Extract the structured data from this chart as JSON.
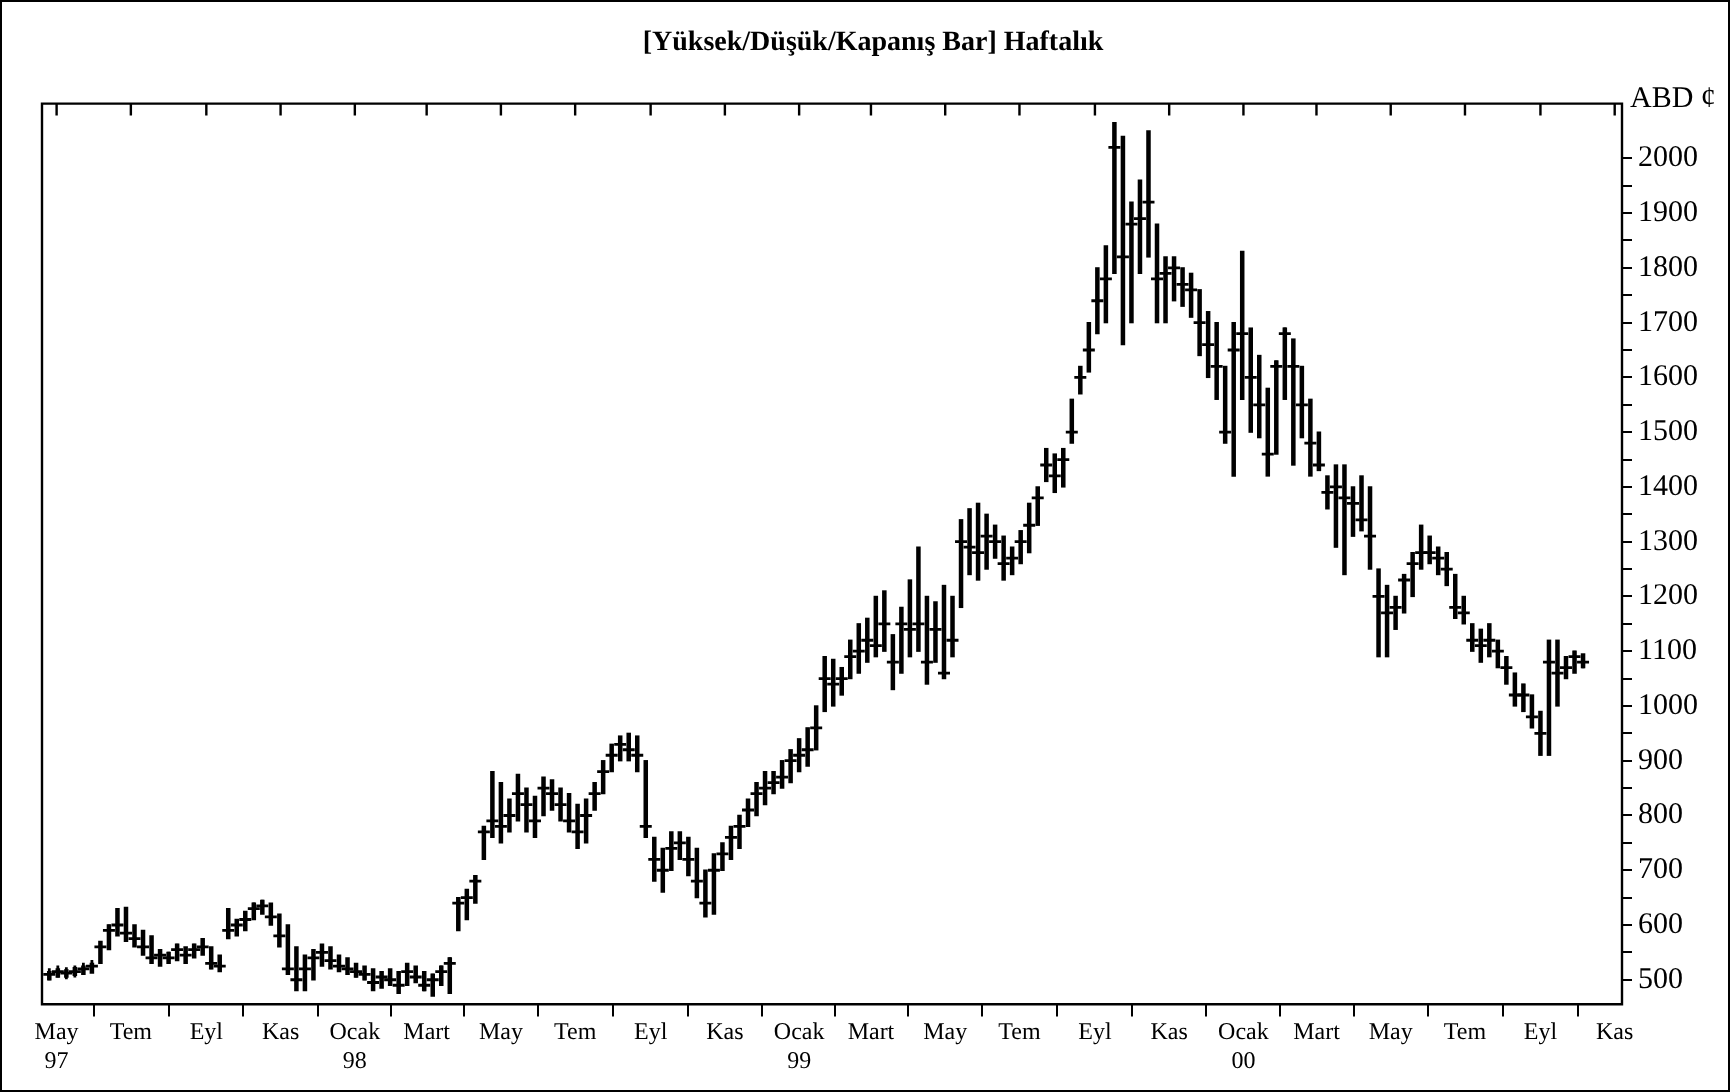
{
  "chart_data": {
    "type": "bar",
    "title": "[Yüksek/Düşük/Kapanış Bar] Haftalık",
    "ylabel": "ABD ¢",
    "x": [
      "1997-04-25",
      "1997-05-02",
      "1997-05-09",
      "1997-05-16",
      "1997-05-23",
      "1997-05-30",
      "1997-06-06",
      "1997-06-13",
      "1997-06-20",
      "1997-06-27",
      "1997-07-04",
      "1997-07-11",
      "1997-07-18",
      "1997-07-25",
      "1997-08-01",
      "1997-08-08",
      "1997-08-15",
      "1997-08-22",
      "1997-08-29",
      "1997-09-05",
      "1997-09-12",
      "1997-09-19",
      "1997-09-26",
      "1997-10-03",
      "1997-10-10",
      "1997-10-17",
      "1997-10-24",
      "1997-10-31",
      "1997-11-07",
      "1997-11-14",
      "1997-11-21",
      "1997-11-28",
      "1997-12-05",
      "1997-12-12",
      "1997-12-19",
      "1997-12-26",
      "1998-01-02",
      "1998-01-09",
      "1998-01-16",
      "1998-01-23",
      "1998-01-30",
      "1998-02-06",
      "1998-02-13",
      "1998-02-20",
      "1998-02-27",
      "1998-03-06",
      "1998-03-13",
      "1998-03-20",
      "1998-03-27",
      "1998-04-03",
      "1998-04-10",
      "1998-04-17",
      "1998-04-24",
      "1998-05-01",
      "1998-05-08",
      "1998-05-15",
      "1998-05-22",
      "1998-05-29",
      "1998-06-05",
      "1998-06-12",
      "1998-06-19",
      "1998-06-26",
      "1998-07-03",
      "1998-07-10",
      "1998-07-17",
      "1998-07-24",
      "1998-07-31",
      "1998-08-07",
      "1998-08-14",
      "1998-08-21",
      "1998-08-28",
      "1998-09-04",
      "1998-09-11",
      "1998-09-18",
      "1998-09-25",
      "1998-10-02",
      "1998-10-09",
      "1998-10-16",
      "1998-10-23",
      "1998-10-30",
      "1998-11-06",
      "1998-11-13",
      "1998-11-20",
      "1998-11-27",
      "1998-12-04",
      "1998-12-11",
      "1998-12-18",
      "1998-12-25",
      "1999-01-01",
      "1999-01-08",
      "1999-01-15",
      "1999-01-22",
      "1999-01-29",
      "1999-02-05",
      "1999-02-12",
      "1999-02-19",
      "1999-02-26",
      "1999-03-05",
      "1999-03-12",
      "1999-03-19",
      "1999-03-26",
      "1999-04-02",
      "1999-04-09",
      "1999-04-16",
      "1999-04-23",
      "1999-04-30",
      "1999-05-07",
      "1999-05-14",
      "1999-05-21",
      "1999-05-28",
      "1999-06-04",
      "1999-06-11",
      "1999-06-18",
      "1999-06-25",
      "1999-07-02",
      "1999-07-09",
      "1999-07-16",
      "1999-07-23",
      "1999-07-30",
      "1999-08-06",
      "1999-08-13",
      "1999-08-20",
      "1999-08-27",
      "1999-09-03",
      "1999-09-10",
      "1999-09-17",
      "1999-09-24",
      "1999-10-01",
      "1999-10-08",
      "1999-10-15",
      "1999-10-22",
      "1999-10-29",
      "1999-11-05",
      "1999-11-12",
      "1999-11-19",
      "1999-11-26",
      "1999-12-03",
      "1999-12-10",
      "1999-12-17",
      "1999-12-24",
      "1999-12-31",
      "2000-01-07",
      "2000-01-14",
      "2000-01-21",
      "2000-01-28",
      "2000-02-04",
      "2000-02-11",
      "2000-02-18",
      "2000-02-25",
      "2000-03-03",
      "2000-03-10",
      "2000-03-17",
      "2000-03-24",
      "2000-03-31",
      "2000-04-07",
      "2000-04-14",
      "2000-04-21",
      "2000-04-28",
      "2000-05-05",
      "2000-05-12",
      "2000-05-19",
      "2000-05-26",
      "2000-06-02",
      "2000-06-09",
      "2000-06-16",
      "2000-06-23",
      "2000-06-30",
      "2000-07-07",
      "2000-07-14",
      "2000-07-21",
      "2000-07-28",
      "2000-08-04",
      "2000-08-11",
      "2000-08-18",
      "2000-08-25",
      "2000-09-01",
      "2000-09-08",
      "2000-09-15",
      "2000-09-22",
      "2000-09-29",
      "2000-10-06"
    ],
    "series": [
      {
        "type": "bar",
        "color": "#000000",
        "base": [
          500,
          505,
          505,
          508,
          510,
          512,
          530,
          555,
          580,
          570,
          560,
          545,
          530,
          525,
          530,
          535,
          530,
          540,
          545,
          520,
          515,
          575,
          580,
          590,
          610,
          620,
          600,
          560,
          510,
          480,
          480,
          500,
          525,
          520,
          515,
          510,
          505,
          500,
          480,
          485,
          490,
          475,
          490,
          495,
          480,
          470,
          490,
          475,
          590,
          610,
          640,
          720,
          760,
          750,
          770,
          790,
          770,
          760,
          800,
          810,
          790,
          770,
          740,
          750,
          810,
          840,
          880,
          900,
          900,
          880,
          760,
          680,
          660,
          700,
          720,
          690,
          650,
          615,
          620,
          700,
          720,
          740,
          780,
          800,
          820,
          840,
          850,
          860,
          880,
          890,
          920,
          990,
          1000,
          1020,
          1050,
          1060,
          1080,
          1090,
          1100,
          1030,
          1060,
          1090,
          1100,
          1040,
          1080,
          1050,
          1090,
          1180,
          1240,
          1230,
          1250,
          1270,
          1230,
          1240,
          1260,
          1280,
          1330,
          1410,
          1390,
          1400,
          1480,
          1570,
          1610,
          1680,
          1700,
          1790,
          1660,
          1700,
          1790,
          1820,
          1700,
          1700,
          1740,
          1730,
          1710,
          1640,
          1600,
          1560,
          1480,
          1420,
          1560,
          1500,
          1490,
          1420,
          1460,
          1560,
          1440,
          1490,
          1420,
          1430,
          1360,
          1290,
          1240,
          1310,
          1320,
          1250,
          1090,
          1090,
          1140,
          1170,
          1200,
          1250,
          1260,
          1240,
          1220,
          1160,
          1150,
          1100,
          1080,
          1090,
          1070,
          1040,
          1000,
          990,
          960,
          910,
          910,
          1000,
          1050,
          1060,
          1070
        ],
        "values": [
          15,
          15,
          13,
          14,
          15,
          18,
          40,
          45,
          50,
          62,
          40,
          45,
          50,
          30,
          20,
          30,
          30,
          25,
          30,
          40,
          30,
          55,
          30,
          35,
          30,
          25,
          40,
          60,
          90,
          80,
          65,
          55,
          40,
          40,
          30,
          30,
          25,
          25,
          40,
          30,
          30,
          40,
          40,
          30,
          35,
          40,
          35,
          65,
          60,
          55,
          50,
          60,
          120,
          110,
          60,
          85,
          80,
          75,
          70,
          55,
          60,
          70,
          80,
          80,
          50,
          60,
          50,
          45,
          50,
          65,
          140,
          80,
          80,
          70,
          50,
          70,
          90,
          85,
          110,
          50,
          60,
          60,
          50,
          60,
          60,
          40,
          50,
          60,
          60,
          70,
          80,
          100,
          85,
          50,
          70,
          90,
          80,
          110,
          110,
          100,
          120,
          140,
          190,
          160,
          110,
          170,
          110,
          160,
          120,
          140,
          100,
          60,
          80,
          50,
          60,
          90,
          70,
          60,
          70,
          70,
          80,
          50,
          90,
          120,
          140,
          275,
          380,
          220,
          170,
          230,
          180,
          120,
          80,
          70,
          80,
          120,
          120,
          140,
          140,
          280,
          270,
          190,
          150,
          160,
          170,
          130,
          230,
          130,
          140,
          70,
          60,
          150,
          200,
          90,
          100,
          150,
          160,
          130,
          60,
          70,
          80,
          80,
          50,
          50,
          60,
          80,
          50,
          50,
          60,
          60,
          50,
          50,
          60,
          50,
          60,
          80,
          210,
          120,
          40,
          40,
          25
        ]
      },
      {
        "type": "scatter",
        "color": "#000000",
        "values": [
          510,
          515,
          512,
          515,
          520,
          525,
          560,
          590,
          600,
          585,
          575,
          560,
          540,
          545,
          540,
          555,
          545,
          555,
          560,
          530,
          525,
          590,
          600,
          610,
          630,
          635,
          615,
          580,
          520,
          500,
          520,
          540,
          550,
          535,
          525,
          520,
          515,
          510,
          495,
          505,
          500,
          490,
          515,
          505,
          490,
          500,
          515,
          530,
          640,
          650,
          680,
          770,
          790,
          780,
          800,
          840,
          820,
          790,
          850,
          840,
          820,
          790,
          770,
          800,
          840,
          880,
          910,
          930,
          920,
          910,
          780,
          720,
          700,
          740,
          750,
          720,
          680,
          640,
          700,
          730,
          760,
          780,
          810,
          840,
          850,
          860,
          870,
          900,
          910,
          920,
          960,
          1050,
          1040,
          1050,
          1090,
          1100,
          1120,
          1110,
          1150,
          1080,
          1150,
          1140,
          1150,
          1080,
          1140,
          1060,
          1120,
          1300,
          1290,
          1280,
          1310,
          1300,
          1260,
          1270,
          1300,
          1330,
          1380,
          1440,
          1420,
          1450,
          1500,
          1600,
          1650,
          1740,
          1780,
          2020,
          1820,
          1880,
          1890,
          1920,
          1780,
          1790,
          1800,
          1770,
          1760,
          1700,
          1660,
          1620,
          1500,
          1650,
          1680,
          1600,
          1550,
          1460,
          1620,
          1680,
          1620,
          1550,
          1480,
          1440,
          1390,
          1400,
          1380,
          1370,
          1340,
          1310,
          1200,
          1170,
          1180,
          1230,
          1260,
          1280,
          1280,
          1270,
          1250,
          1180,
          1170,
          1120,
          1110,
          1120,
          1100,
          1070,
          1020,
          1020,
          980,
          950,
          1080,
          1060,
          1070,
          1090,
          1080
        ]
      }
    ],
    "xlim": [
      "1997-04-19",
      "2000-11-07"
    ],
    "xticks": [
      {
        "value": "1997-05-01",
        "label": "May\n97"
      },
      {
        "value": "1997-07-01",
        "label": "Tem"
      },
      {
        "value": "1997-09-01",
        "label": "Eyl"
      },
      {
        "value": "1997-11-01",
        "label": "Kas"
      },
      {
        "value": "1998-01-01",
        "label": "Ocak\n98"
      },
      {
        "value": "1998-03-01",
        "label": "Mart"
      },
      {
        "value": "1998-05-01",
        "label": "May"
      },
      {
        "value": "1998-07-01",
        "label": "Tem"
      },
      {
        "value": "1998-09-01",
        "label": "Eyl"
      },
      {
        "value": "1998-11-01",
        "label": "Kas"
      },
      {
        "value": "1999-01-01",
        "label": "Ocak\n99"
      },
      {
        "value": "1999-03-01",
        "label": "Mart"
      },
      {
        "value": "1999-05-01",
        "label": "May"
      },
      {
        "value": "1999-07-01",
        "label": "Tem"
      },
      {
        "value": "1999-09-01",
        "label": "Eyl"
      },
      {
        "value": "1999-11-01",
        "label": "Kas"
      },
      {
        "value": "2000-01-01",
        "label": "Ocak\n00"
      },
      {
        "value": "2000-03-01",
        "label": "Mart"
      },
      {
        "value": "2000-05-01",
        "label": "May"
      },
      {
        "value": "2000-07-01",
        "label": "Tem"
      },
      {
        "value": "2000-09-01",
        "label": "Eyl"
      },
      {
        "value": "2000-11-01",
        "label": "Kas"
      }
    ],
    "ylim": [
      455,
      2100
    ],
    "yticks": [
      500,
      {
        "value": 550,
        "label": null
      },
      600,
      {
        "value": 650,
        "label": null
      },
      700,
      {
        "value": 750,
        "label": null
      },
      800,
      {
        "value": 850,
        "label": null
      },
      900,
      {
        "value": 950,
        "label": null
      },
      1000,
      {
        "value": 1050,
        "label": null
      },
      1100,
      {
        "value": 1150,
        "label": null
      },
      1200,
      {
        "value": 1250,
        "label": null
      },
      1300,
      {
        "value": 1350,
        "label": null
      },
      1400,
      {
        "value": 1450,
        "label": null
      },
      1500,
      {
        "value": 1550,
        "label": null
      },
      1600,
      {
        "value": 1650,
        "label": null
      },
      1700,
      {
        "value": 1750,
        "label": null
      },
      1800,
      {
        "value": 1850,
        "label": null
      },
      1900,
      {
        "value": 1950,
        "label": null
      },
      2000
    ],
    "grid": false,
    "legend": false,
    "marker": "cross"
  }
}
